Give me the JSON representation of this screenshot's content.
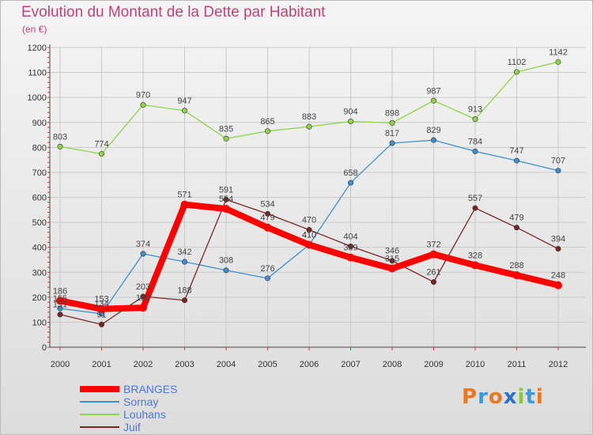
{
  "page": {
    "title": "Evolution du Montant de la Dette par Habitant",
    "subtitle": "(en €)"
  },
  "brand": {
    "text": "Proxiti",
    "colors": [
      "#e8791e",
      "#3a9ad9",
      "#e8791e",
      "#2c70c8",
      "#8cc63f",
      "#3a9ad9",
      "#e8791e"
    ]
  },
  "chart_data": {
    "type": "line",
    "x": [
      "2000",
      "2001",
      "2002",
      "2003",
      "2004",
      "2005",
      "2006",
      "2007",
      "2008",
      "2009",
      "2010",
      "2011",
      "2012"
    ],
    "ylim": [
      0,
      1200
    ],
    "yticks": [
      0,
      100,
      200,
      300,
      400,
      500,
      600,
      700,
      800,
      900,
      1000,
      1100,
      1200
    ],
    "grid": true,
    "legend_position": "bottom-left",
    "series": [
      {
        "name": "BRANGES",
        "color": "#ff0000",
        "values": [
          186,
          153,
          158,
          571,
          554,
          479,
          410,
          359,
          315,
          372,
          328,
          288,
          248
        ],
        "labels": [
          "186",
          "153",
          "158",
          "571",
          "554",
          "479",
          "410",
          "359",
          "315",
          "372",
          "328",
          "288",
          "248"
        ]
      },
      {
        "name": "Sornay",
        "color": "#3f8fd0",
        "values": [
          155,
          134,
          374,
          342,
          308,
          276,
          410,
          658,
          817,
          829,
          784,
          747,
          707
        ],
        "labels": [
          "155",
          "134",
          "374",
          "342",
          "308",
          "276",
          "410",
          "658",
          "817",
          "829",
          "784",
          "747",
          "707"
        ]
      },
      {
        "name": "Louhans",
        "color": "#8fd34a",
        "values": [
          803,
          774,
          970,
          947,
          835,
          865,
          883,
          904,
          898,
          987,
          913,
          1102,
          1142
        ],
        "labels": [
          "803",
          "774",
          "970",
          "947",
          "835",
          "865",
          "883",
          "904",
          "898",
          "987",
          "913",
          "1102",
          "1142"
        ]
      },
      {
        "name": "Juif",
        "color": "#7a2424",
        "values": [
          131,
          91,
          203,
          188,
          591,
          534,
          470,
          404,
          346,
          261,
          557,
          479,
          394
        ],
        "labels": [
          "131",
          "91",
          "203",
          "188",
          "591",
          "534",
          "470",
          "404",
          "346",
          "261",
          "557",
          "479",
          "394"
        ]
      }
    ]
  }
}
